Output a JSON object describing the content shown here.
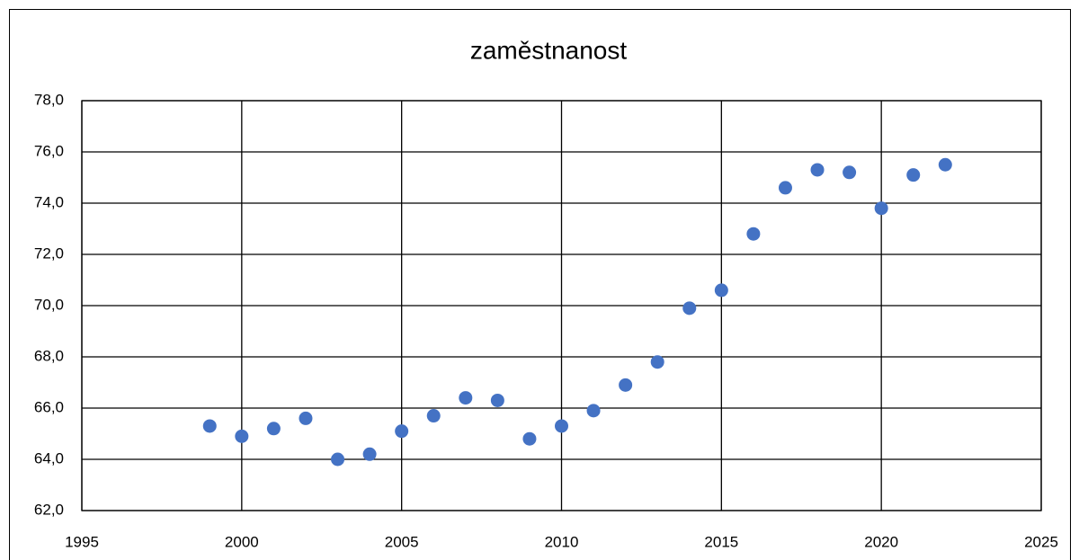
{
  "chart_data": {
    "type": "scatter",
    "title": "zaměstnanost",
    "x": [
      1999,
      2000,
      2001,
      2002,
      2003,
      2004,
      2005,
      2006,
      2007,
      2008,
      2009,
      2010,
      2011,
      2012,
      2013,
      2014,
      2015,
      2016,
      2017,
      2018,
      2019,
      2020,
      2021,
      2022
    ],
    "series": [
      {
        "color": "#4472c4",
        "values": [
          65.3,
          64.9,
          65.2,
          65.6,
          64.0,
          64.2,
          65.1,
          65.7,
          66.4,
          66.3,
          64.8,
          65.3,
          65.9,
          66.9,
          67.8,
          69.9,
          70.6,
          72.8,
          74.6,
          75.3,
          75.2,
          73.8,
          75.1,
          75.5
        ]
      }
    ],
    "xlim": [
      1995,
      2025
    ],
    "xticks": [
      1995,
      2000,
      2005,
      2010,
      2015,
      2020,
      2025
    ],
    "ylim": [
      62,
      78
    ],
    "yticks": [
      {
        "value": 62,
        "label": "62,0"
      },
      {
        "value": 64,
        "label": "64,0"
      },
      {
        "value": 66,
        "label": "66,0"
      },
      {
        "value": 68,
        "label": "68,0"
      },
      {
        "value": 70,
        "label": "70,0"
      },
      {
        "value": 72,
        "label": "72,0"
      },
      {
        "value": 74,
        "label": "74,0"
      },
      {
        "value": 76,
        "label": "76,0"
      },
      {
        "value": 78,
        "label": "78,0"
      }
    ],
    "grid": true
  }
}
